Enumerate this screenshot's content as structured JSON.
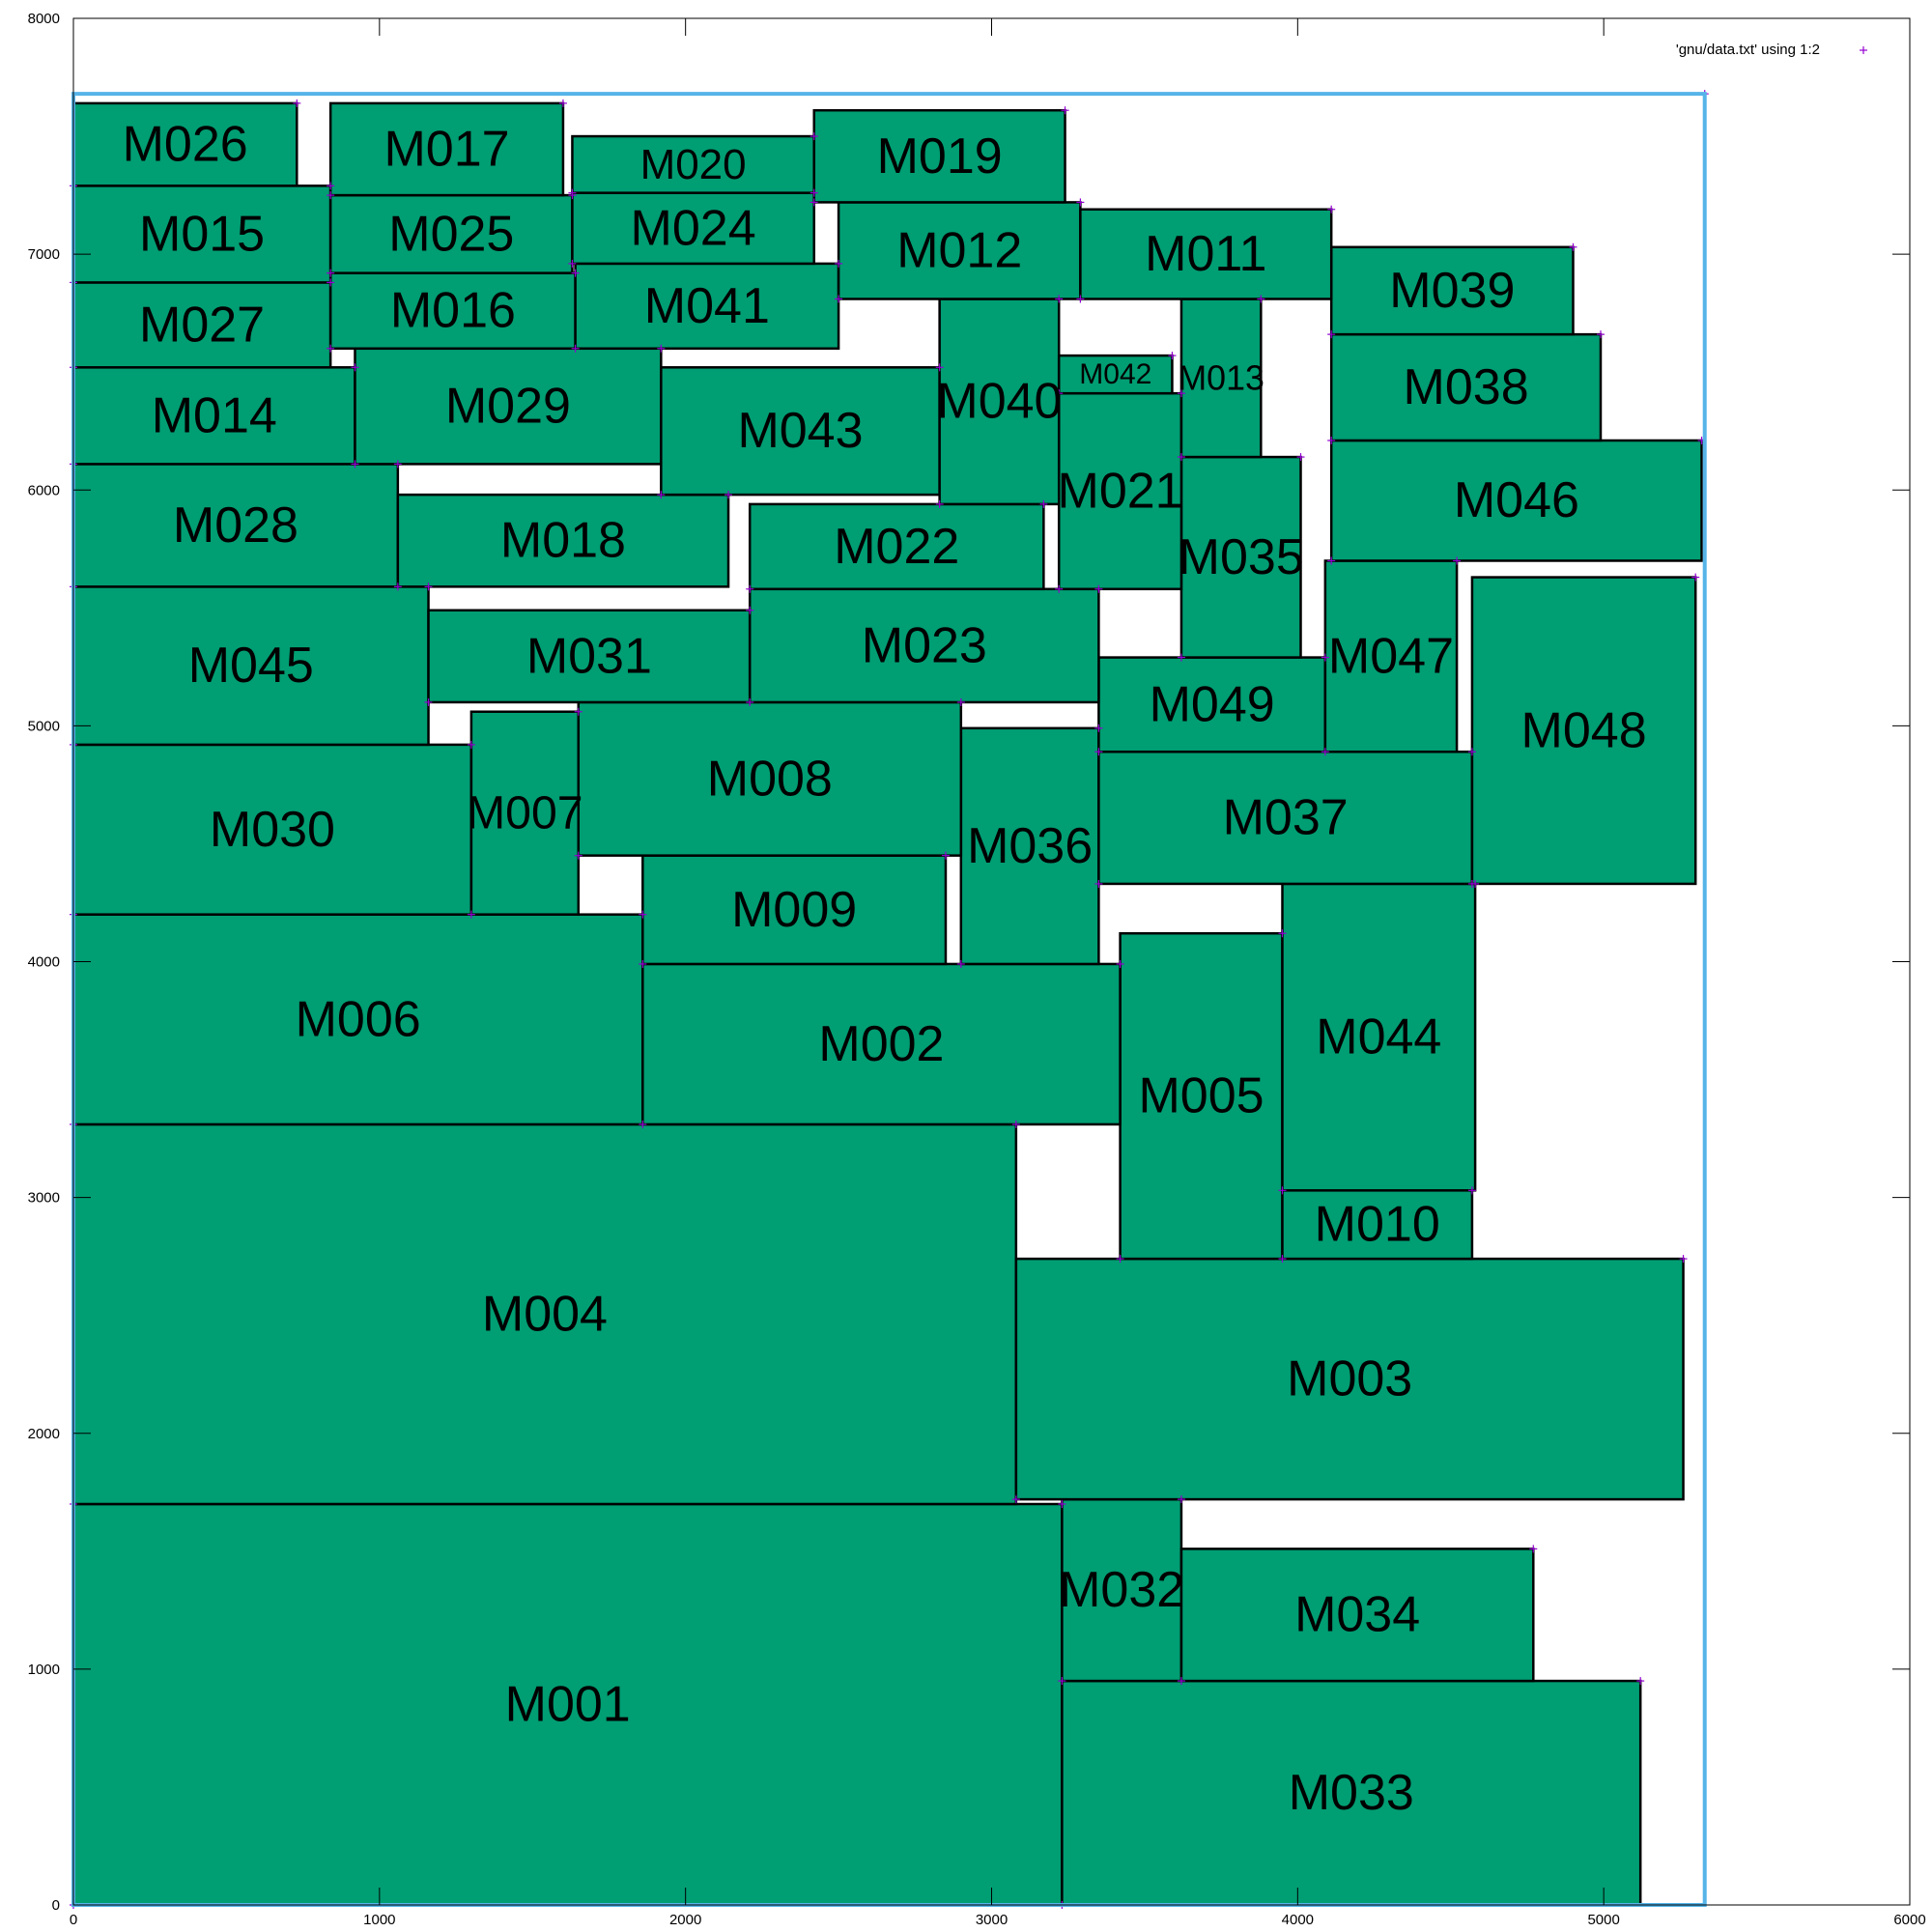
{
  "chart_data": {
    "type": "rectangle-packing",
    "xlim": [
      0,
      6000
    ],
    "ylim": [
      0,
      8000
    ],
    "x_ticks": [
      0,
      1000,
      2000,
      3000,
      4000,
      5000,
      6000
    ],
    "y_ticks": [
      0,
      1000,
      2000,
      3000,
      4000,
      5000,
      6000,
      7000,
      8000
    ],
    "legend": {
      "label": "'gnu/data.txt' using 1:2",
      "position": "top-right"
    },
    "colors": {
      "fill": "#009e73",
      "stroke": "#000000",
      "outline": "#56b4e9",
      "marker": "#9400d3"
    },
    "outline": {
      "x1": 0,
      "y1": 0,
      "x2": 5330,
      "y2": 7680
    },
    "blocks": [
      {
        "name": "M001",
        "x1": 0,
        "y1": 0,
        "x2": 3230,
        "y2": 1700
      },
      {
        "name": "M033",
        "x1": 3230,
        "y1": 0,
        "x2": 5120,
        "y2": 950
      },
      {
        "name": "M032",
        "x1": 3230,
        "y1": 950,
        "x2": 3620,
        "y2": 1720
      },
      {
        "name": "M034",
        "x1": 3620,
        "y1": 950,
        "x2": 4770,
        "y2": 1510
      },
      {
        "name": "M004",
        "x1": 0,
        "y1": 1700,
        "x2": 3080,
        "y2": 3310
      },
      {
        "name": "M003",
        "x1": 3080,
        "y1": 1720,
        "x2": 5260,
        "y2": 2740
      },
      {
        "name": "M005",
        "x1": 3420,
        "y1": 2740,
        "x2": 3950,
        "y2": 4120
      },
      {
        "name": "M010",
        "x1": 3950,
        "y1": 2740,
        "x2": 4570,
        "y2": 3030
      },
      {
        "name": "M044",
        "x1": 3950,
        "y1": 3030,
        "x2": 4580,
        "y2": 4330
      },
      {
        "name": "M006",
        "x1": 0,
        "y1": 3310,
        "x2": 1860,
        "y2": 4200
      },
      {
        "name": "M002",
        "x1": 1860,
        "y1": 3310,
        "x2": 3420,
        "y2": 3990
      },
      {
        "name": "M009",
        "x1": 1860,
        "y1": 3990,
        "x2": 2850,
        "y2": 4450
      },
      {
        "name": "M036",
        "x1": 2900,
        "y1": 3990,
        "x2": 3350,
        "y2": 4990
      },
      {
        "name": "M030",
        "x1": 0,
        "y1": 4200,
        "x2": 1300,
        "y2": 4920
      },
      {
        "name": "M007",
        "x1": 1300,
        "y1": 4200,
        "x2": 1650,
        "y2": 5060
      },
      {
        "name": "M008",
        "x1": 1650,
        "y1": 4450,
        "x2": 2900,
        "y2": 5100
      },
      {
        "name": "M037",
        "x1": 3350,
        "y1": 4330,
        "x2": 4570,
        "y2": 4890
      },
      {
        "name": "M048",
        "x1": 4570,
        "y1": 4330,
        "x2": 5300,
        "y2": 5630
      },
      {
        "name": "M049",
        "x1": 3350,
        "y1": 4890,
        "x2": 4090,
        "y2": 5290
      },
      {
        "name": "M047",
        "x1": 4090,
        "y1": 4890,
        "x2": 4520,
        "y2": 5700
      },
      {
        "name": "M045",
        "x1": 0,
        "y1": 4920,
        "x2": 1160,
        "y2": 5590
      },
      {
        "name": "M031",
        "x1": 1160,
        "y1": 5100,
        "x2": 2210,
        "y2": 5490
      },
      {
        "name": "M023",
        "x1": 2210,
        "y1": 5100,
        "x2": 3350,
        "y2": 5580
      },
      {
        "name": "M035",
        "x1": 3620,
        "y1": 5290,
        "x2": 4010,
        "y2": 6140
      },
      {
        "name": "M028",
        "x1": 0,
        "y1": 5590,
        "x2": 1060,
        "y2": 6110
      },
      {
        "name": "M018",
        "x1": 1060,
        "y1": 5590,
        "x2": 2140,
        "y2": 5980
      },
      {
        "name": "M022",
        "x1": 2210,
        "y1": 5580,
        "x2": 3170,
        "y2": 5940
      },
      {
        "name": "M021",
        "x1": 3220,
        "y1": 5580,
        "x2": 3620,
        "y2": 6410
      },
      {
        "name": "M046",
        "x1": 4110,
        "y1": 5700,
        "x2": 5320,
        "y2": 6210
      },
      {
        "name": "M014",
        "x1": 0,
        "y1": 6110,
        "x2": 920,
        "y2": 6520
      },
      {
        "name": "M029",
        "x1": 920,
        "y1": 6110,
        "x2": 1920,
        "y2": 6600
      },
      {
        "name": "M043",
        "x1": 1920,
        "y1": 5980,
        "x2": 2830,
        "y2": 6520
      },
      {
        "name": "M040",
        "x1": 2830,
        "y1": 5940,
        "x2": 3220,
        "y2": 6810
      },
      {
        "name": "M042",
        "x1": 3220,
        "y1": 6410,
        "x2": 3590,
        "y2": 6570
      },
      {
        "name": "M013",
        "x1": 3620,
        "y1": 6140,
        "x2": 3880,
        "y2": 6810
      },
      {
        "name": "M038",
        "x1": 4110,
        "y1": 6210,
        "x2": 4990,
        "y2": 6660
      },
      {
        "name": "M027",
        "x1": 0,
        "y1": 6520,
        "x2": 840,
        "y2": 6880
      },
      {
        "name": "M016",
        "x1": 840,
        "y1": 6600,
        "x2": 1640,
        "y2": 6920
      },
      {
        "name": "M041",
        "x1": 1640,
        "y1": 6600,
        "x2": 2500,
        "y2": 6960
      },
      {
        "name": "M039",
        "x1": 4110,
        "y1": 6660,
        "x2": 4900,
        "y2": 7030
      },
      {
        "name": "M012",
        "x1": 2500,
        "y1": 6810,
        "x2": 3290,
        "y2": 7220
      },
      {
        "name": "M011",
        "x1": 3290,
        "y1": 6810,
        "x2": 4110,
        "y2": 7190
      },
      {
        "name": "M015",
        "x1": 0,
        "y1": 6880,
        "x2": 840,
        "y2": 7290
      },
      {
        "name": "M025",
        "x1": 840,
        "y1": 6920,
        "x2": 1630,
        "y2": 7250
      },
      {
        "name": "M024",
        "x1": 1630,
        "y1": 6960,
        "x2": 2420,
        "y2": 7260
      },
      {
        "name": "M020",
        "x1": 1630,
        "y1": 7260,
        "x2": 2420,
        "y2": 7500
      },
      {
        "name": "M019",
        "x1": 2420,
        "y1": 7220,
        "x2": 3240,
        "y2": 7610
      },
      {
        "name": "M026",
        "x1": 0,
        "y1": 7290,
        "x2": 730,
        "y2": 7640
      },
      {
        "name": "M017",
        "x1": 840,
        "y1": 7250,
        "x2": 1600,
        "y2": 7640
      }
    ]
  }
}
